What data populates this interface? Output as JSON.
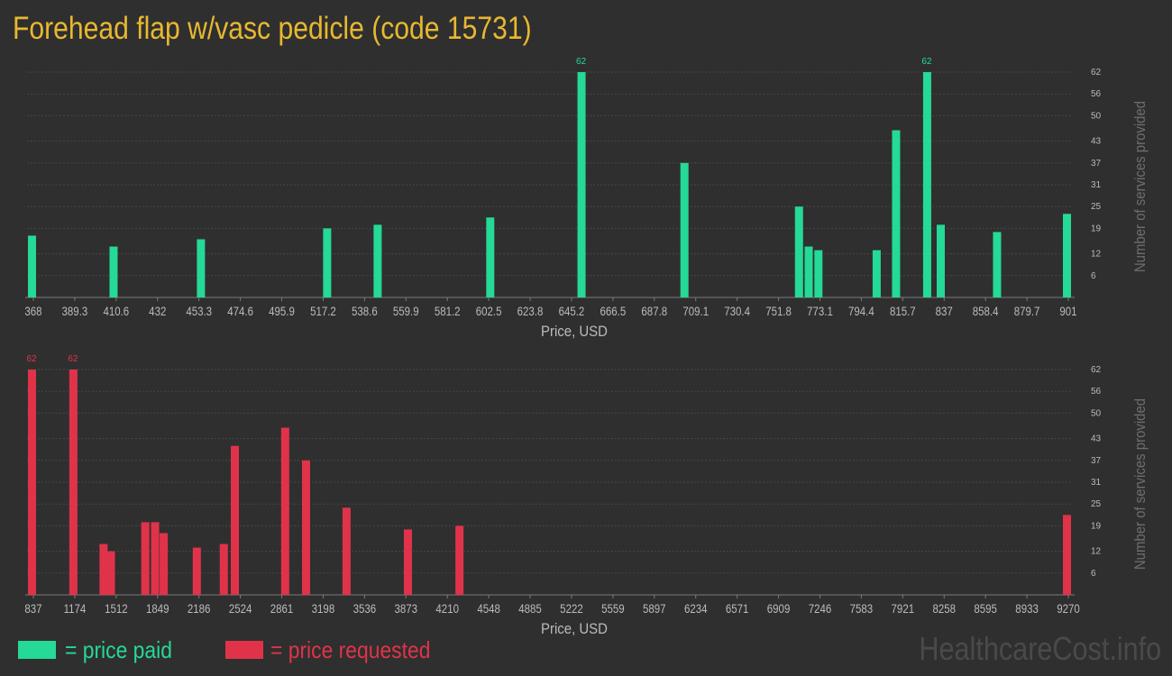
{
  "title": "Forehead flap w/vasc pedicle (code 15731)",
  "colors": {
    "background": "#2f2f2f",
    "title": "#e8b830",
    "paid": "#25d996",
    "requested": "#e0334a",
    "axis_text": "#bbbbbb",
    "grid": "#474747",
    "watermark": "#4a4a4a"
  },
  "legend": {
    "paid_label": "= price paid",
    "requested_label": "= price requested"
  },
  "watermark": "HealthcareCost.info",
  "chart_data": [
    {
      "type": "bar",
      "xlabel": "Price, USD",
      "ylabel": "Number of services provided",
      "ylim": [
        0,
        62
      ],
      "yticks": [
        6,
        12,
        19,
        25,
        31,
        37,
        43,
        50,
        56,
        62
      ],
      "xlim": [
        368,
        901
      ],
      "xticks": [
        "368",
        "389.3",
        "410.6",
        "432",
        "453.3",
        "474.6",
        "495.9",
        "517.2",
        "538.6",
        "559.9",
        "581.2",
        "602.5",
        "623.8",
        "645.2",
        "666.5",
        "687.8",
        "709.1",
        "730.4",
        "751.8",
        "773.1",
        "794.4",
        "815.7",
        "837",
        "858.4",
        "879.7",
        "901"
      ],
      "series": [
        {
          "color_key": "paid",
          "x": [
            368,
            410,
            455,
            520,
            546,
            604,
            651,
            704,
            763,
            768,
            773,
            803,
            813,
            829,
            836,
            865,
            901
          ],
          "values": [
            17,
            14,
            16,
            19,
            20,
            22,
            62,
            37,
            25,
            14,
            13,
            13,
            46,
            62,
            20,
            18,
            23
          ],
          "labels": [
            "",
            "",
            "",
            "",
            "",
            "",
            "62",
            "",
            "",
            "",
            "",
            "",
            "",
            "62",
            "",
            "",
            ""
          ]
        }
      ],
      "grid": true
    },
    {
      "type": "bar",
      "xlabel": "Price, USD",
      "ylabel": "Number of services provided",
      "ylim": [
        0,
        62
      ],
      "yticks": [
        6,
        12,
        19,
        25,
        31,
        37,
        43,
        50,
        56,
        62
      ],
      "xlim": [
        837,
        9270
      ],
      "xticks": [
        "837",
        "1174",
        "1512",
        "1849",
        "2186",
        "2524",
        "2861",
        "3198",
        "3536",
        "3873",
        "4210",
        "4548",
        "4885",
        "5222",
        "5559",
        "5897",
        "6234",
        "6571",
        "6909",
        "7246",
        "7583",
        "7921",
        "8258",
        "8595",
        "8933",
        "9270"
      ],
      "series": [
        {
          "color_key": "requested",
          "x": [
            837,
            1174,
            1420,
            1480,
            1760,
            1840,
            1910,
            2180,
            2400,
            2490,
            2900,
            3070,
            3400,
            3900,
            4320,
            9270
          ],
          "values": [
            62,
            62,
            14,
            12,
            20,
            20,
            17,
            13,
            14,
            41,
            46,
            37,
            24,
            18,
            19,
            22
          ],
          "labels": [
            "62",
            "62",
            "",
            "",
            "",
            "",
            "",
            "",
            "",
            "",
            "",
            "",
            "",
            "",
            "",
            ""
          ]
        }
      ],
      "grid": true
    }
  ]
}
